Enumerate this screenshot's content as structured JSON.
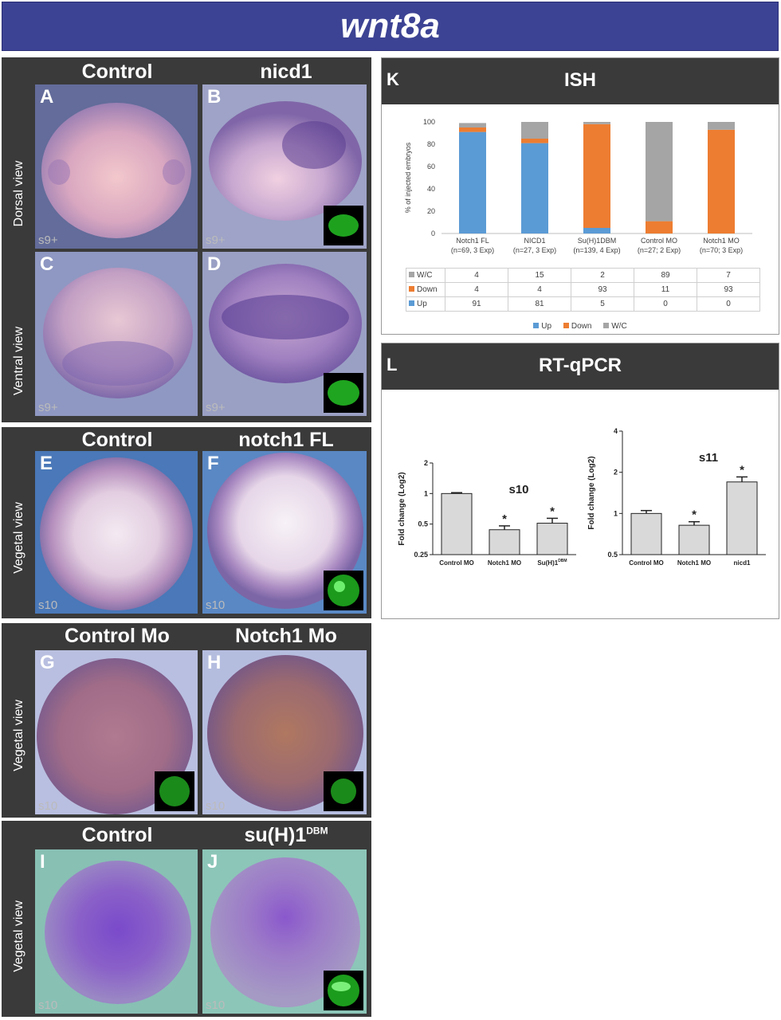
{
  "title": "wnt8a",
  "panels": {
    "group1": {
      "col_left": "Control",
      "col_right": "nicd1",
      "row_top_label": "Dorsal view",
      "row_bottom_label": "Ventral view",
      "A": {
        "letter": "A",
        "stage": "s9+"
      },
      "B": {
        "letter": "B",
        "stage": "s9+"
      },
      "C": {
        "letter": "C",
        "stage": "s9+"
      },
      "D": {
        "letter": "D",
        "stage": "s9+"
      }
    },
    "group2": {
      "col_left": "Control",
      "col_right": "notch1 FL",
      "row_label": "Vegetal view",
      "E": {
        "letter": "E",
        "stage": "s10"
      },
      "F": {
        "letter": "F",
        "stage": "s10"
      }
    },
    "group3": {
      "col_left": "Control Mo",
      "col_right": "Notch1 Mo",
      "row_label": "Vegetal view",
      "G": {
        "letter": "G",
        "stage": "s10"
      },
      "H": {
        "letter": "H",
        "stage": "s10"
      }
    },
    "group4": {
      "col_left": "Control",
      "col_right": "su(H)1",
      "col_right_sup": "DBM",
      "row_label": "Vegetal view",
      "I": {
        "letter": "I",
        "stage": "s10"
      },
      "J": {
        "letter": "J",
        "stage": "s10"
      }
    }
  },
  "ish": {
    "letter": "K",
    "title": "ISH",
    "legend": {
      "up": "Up",
      "down": "Down",
      "wc": "W/C"
    },
    "row_labels": {
      "wc": "W/C",
      "down": "Down",
      "up": "Up"
    },
    "colors": {
      "up": "#5b9bd5",
      "down": "#ed7d31",
      "wc": "#a5a5a5"
    }
  },
  "qpcr": {
    "letter": "L",
    "title": "RT-qPCR"
  },
  "chart_data": [
    {
      "type": "bar",
      "stacked": true,
      "title": "",
      "ylabel": "% of injected embryos",
      "ylim": [
        0,
        100
      ],
      "yticks": [
        "0",
        "20",
        "40",
        "60",
        "80",
        "100"
      ],
      "categories": [
        {
          "name": "Notch1 FL",
          "sub": "(n=69, 3 Exp)"
        },
        {
          "name": "NICD1",
          "sub": "(n=27, 3 Exp)"
        },
        {
          "name": "Su(H)1DBM",
          "sub": "(n=139, 4 Exp)"
        },
        {
          "name": "Control MO",
          "sub": "(n=27; 2 Exp)"
        },
        {
          "name": "Notch1 MO",
          "sub": "(n=70; 3 Exp)"
        }
      ],
      "series": [
        {
          "name": "Up",
          "values": [
            91,
            81,
            5,
            0,
            0
          ]
        },
        {
          "name": "Down",
          "values": [
            4,
            4,
            93,
            11,
            93
          ]
        },
        {
          "name": "W/C",
          "values": [
            4,
            15,
            2,
            89,
            7
          ]
        }
      ],
      "legend": "bottom",
      "grid": false
    },
    {
      "type": "bar",
      "title": "s10",
      "ylabel": "Fold change (Log2)",
      "yscale": "log2",
      "ylim": [
        0.25,
        2
      ],
      "yticks": [
        "0.25",
        "0.5",
        "1",
        "2"
      ],
      "categories": [
        "Control MO",
        "Notch1 MO",
        "Su(H)1"
      ],
      "category_sup": [
        "",
        "",
        "DBM"
      ],
      "values": [
        1.0,
        0.44,
        0.51
      ],
      "errors": [
        0.02,
        0.04,
        0.06
      ],
      "significant": [
        "",
        "*",
        "*"
      ]
    },
    {
      "type": "bar",
      "title": "s11",
      "ylabel": "Fold change (Log2)",
      "yscale": "log2",
      "ylim": [
        0.5,
        4
      ],
      "yticks": [
        "0.5",
        "1",
        "2",
        "4"
      ],
      "categories": [
        "Control MO",
        "Notch1 MO",
        "nicd1"
      ],
      "values": [
        1.0,
        0.82,
        1.7
      ],
      "errors": [
        0.05,
        0.05,
        0.15
      ],
      "significant": [
        "",
        "*",
        "*"
      ]
    }
  ]
}
